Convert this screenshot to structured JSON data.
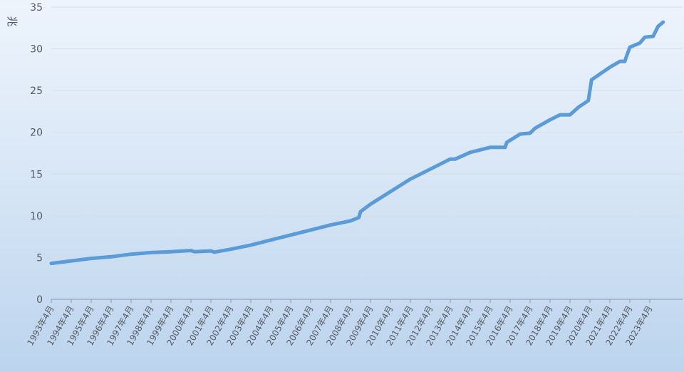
{
  "chart_data": {
    "type": "line",
    "title": "",
    "xlabel": "",
    "ylabel": "兆",
    "ylim": [
      0,
      35
    ],
    "yticks": [
      0,
      5,
      10,
      15,
      20,
      25,
      30,
      35
    ],
    "grid": true,
    "colors": {
      "line": "#5a9bd8",
      "grid": "#d6dde6",
      "axis": "#8a9aab"
    },
    "x": [
      "1993年4月",
      "1994年4月",
      "1995年4月",
      "1996年4月",
      "1997年4月",
      "1998年4月",
      "1999年4月",
      "2000年4月",
      "2001年4月",
      "2002年4月",
      "2003年4月",
      "2004年4月",
      "2005年4月",
      "2006年4月",
      "2007年4月",
      "2008年4月",
      "2009年4月",
      "2010年4月",
      "2011年4月",
      "2012年4月",
      "2013年4月",
      "2014年4月",
      "2015年4月",
      "2016年4月",
      "2017年4月",
      "2018年4月",
      "2019年4月",
      "2020年4月",
      "2021年4月",
      "2022年4月",
      "2023年4月"
    ],
    "series": [
      {
        "name": "",
        "points": [
          [
            "1993-04",
            4.3
          ],
          [
            "1994-04",
            4.6
          ],
          [
            "1995-04",
            4.9
          ],
          [
            "1996-04",
            5.1
          ],
          [
            "1997-04",
            5.4
          ],
          [
            "1998-04",
            5.6
          ],
          [
            "1999-04",
            5.7
          ],
          [
            "2000-04",
            5.85
          ],
          [
            "2000-06",
            5.7
          ],
          [
            "2001-04",
            5.8
          ],
          [
            "2001-06",
            5.65
          ],
          [
            "2002-04",
            6.0
          ],
          [
            "2003-04",
            6.5
          ],
          [
            "2004-04",
            7.1
          ],
          [
            "2005-04",
            7.7
          ],
          [
            "2006-04",
            8.3
          ],
          [
            "2007-04",
            8.9
          ],
          [
            "2008-04",
            9.4
          ],
          [
            "2008-09",
            9.8
          ],
          [
            "2008-10",
            10.5
          ],
          [
            "2009-04",
            11.4
          ],
          [
            "2010-04",
            12.9
          ],
          [
            "2011-04",
            14.4
          ],
          [
            "2012-04",
            15.6
          ],
          [
            "2013-04",
            16.8
          ],
          [
            "2013-07",
            16.8
          ],
          [
            "2014-04",
            17.6
          ],
          [
            "2015-04",
            18.2
          ],
          [
            "2016-01",
            18.2
          ],
          [
            "2016-02",
            18.8
          ],
          [
            "2016-10",
            19.8
          ],
          [
            "2017-04",
            19.9
          ],
          [
            "2017-07",
            20.5
          ],
          [
            "2018-04",
            21.5
          ],
          [
            "2018-10",
            22.1
          ],
          [
            "2019-04",
            22.1
          ],
          [
            "2019-09",
            23.0
          ],
          [
            "2020-03",
            23.8
          ],
          [
            "2020-05",
            26.3
          ],
          [
            "2021-04",
            27.8
          ],
          [
            "2021-10",
            28.5
          ],
          [
            "2022-01",
            28.5
          ],
          [
            "2022-02",
            29.1
          ],
          [
            "2022-04",
            30.2
          ],
          [
            "2022-10",
            30.7
          ],
          [
            "2023-01",
            31.4
          ],
          [
            "2023-06",
            31.5
          ],
          [
            "2023-09",
            32.7
          ],
          [
            "2023-12",
            33.2
          ]
        ]
      }
    ]
  }
}
